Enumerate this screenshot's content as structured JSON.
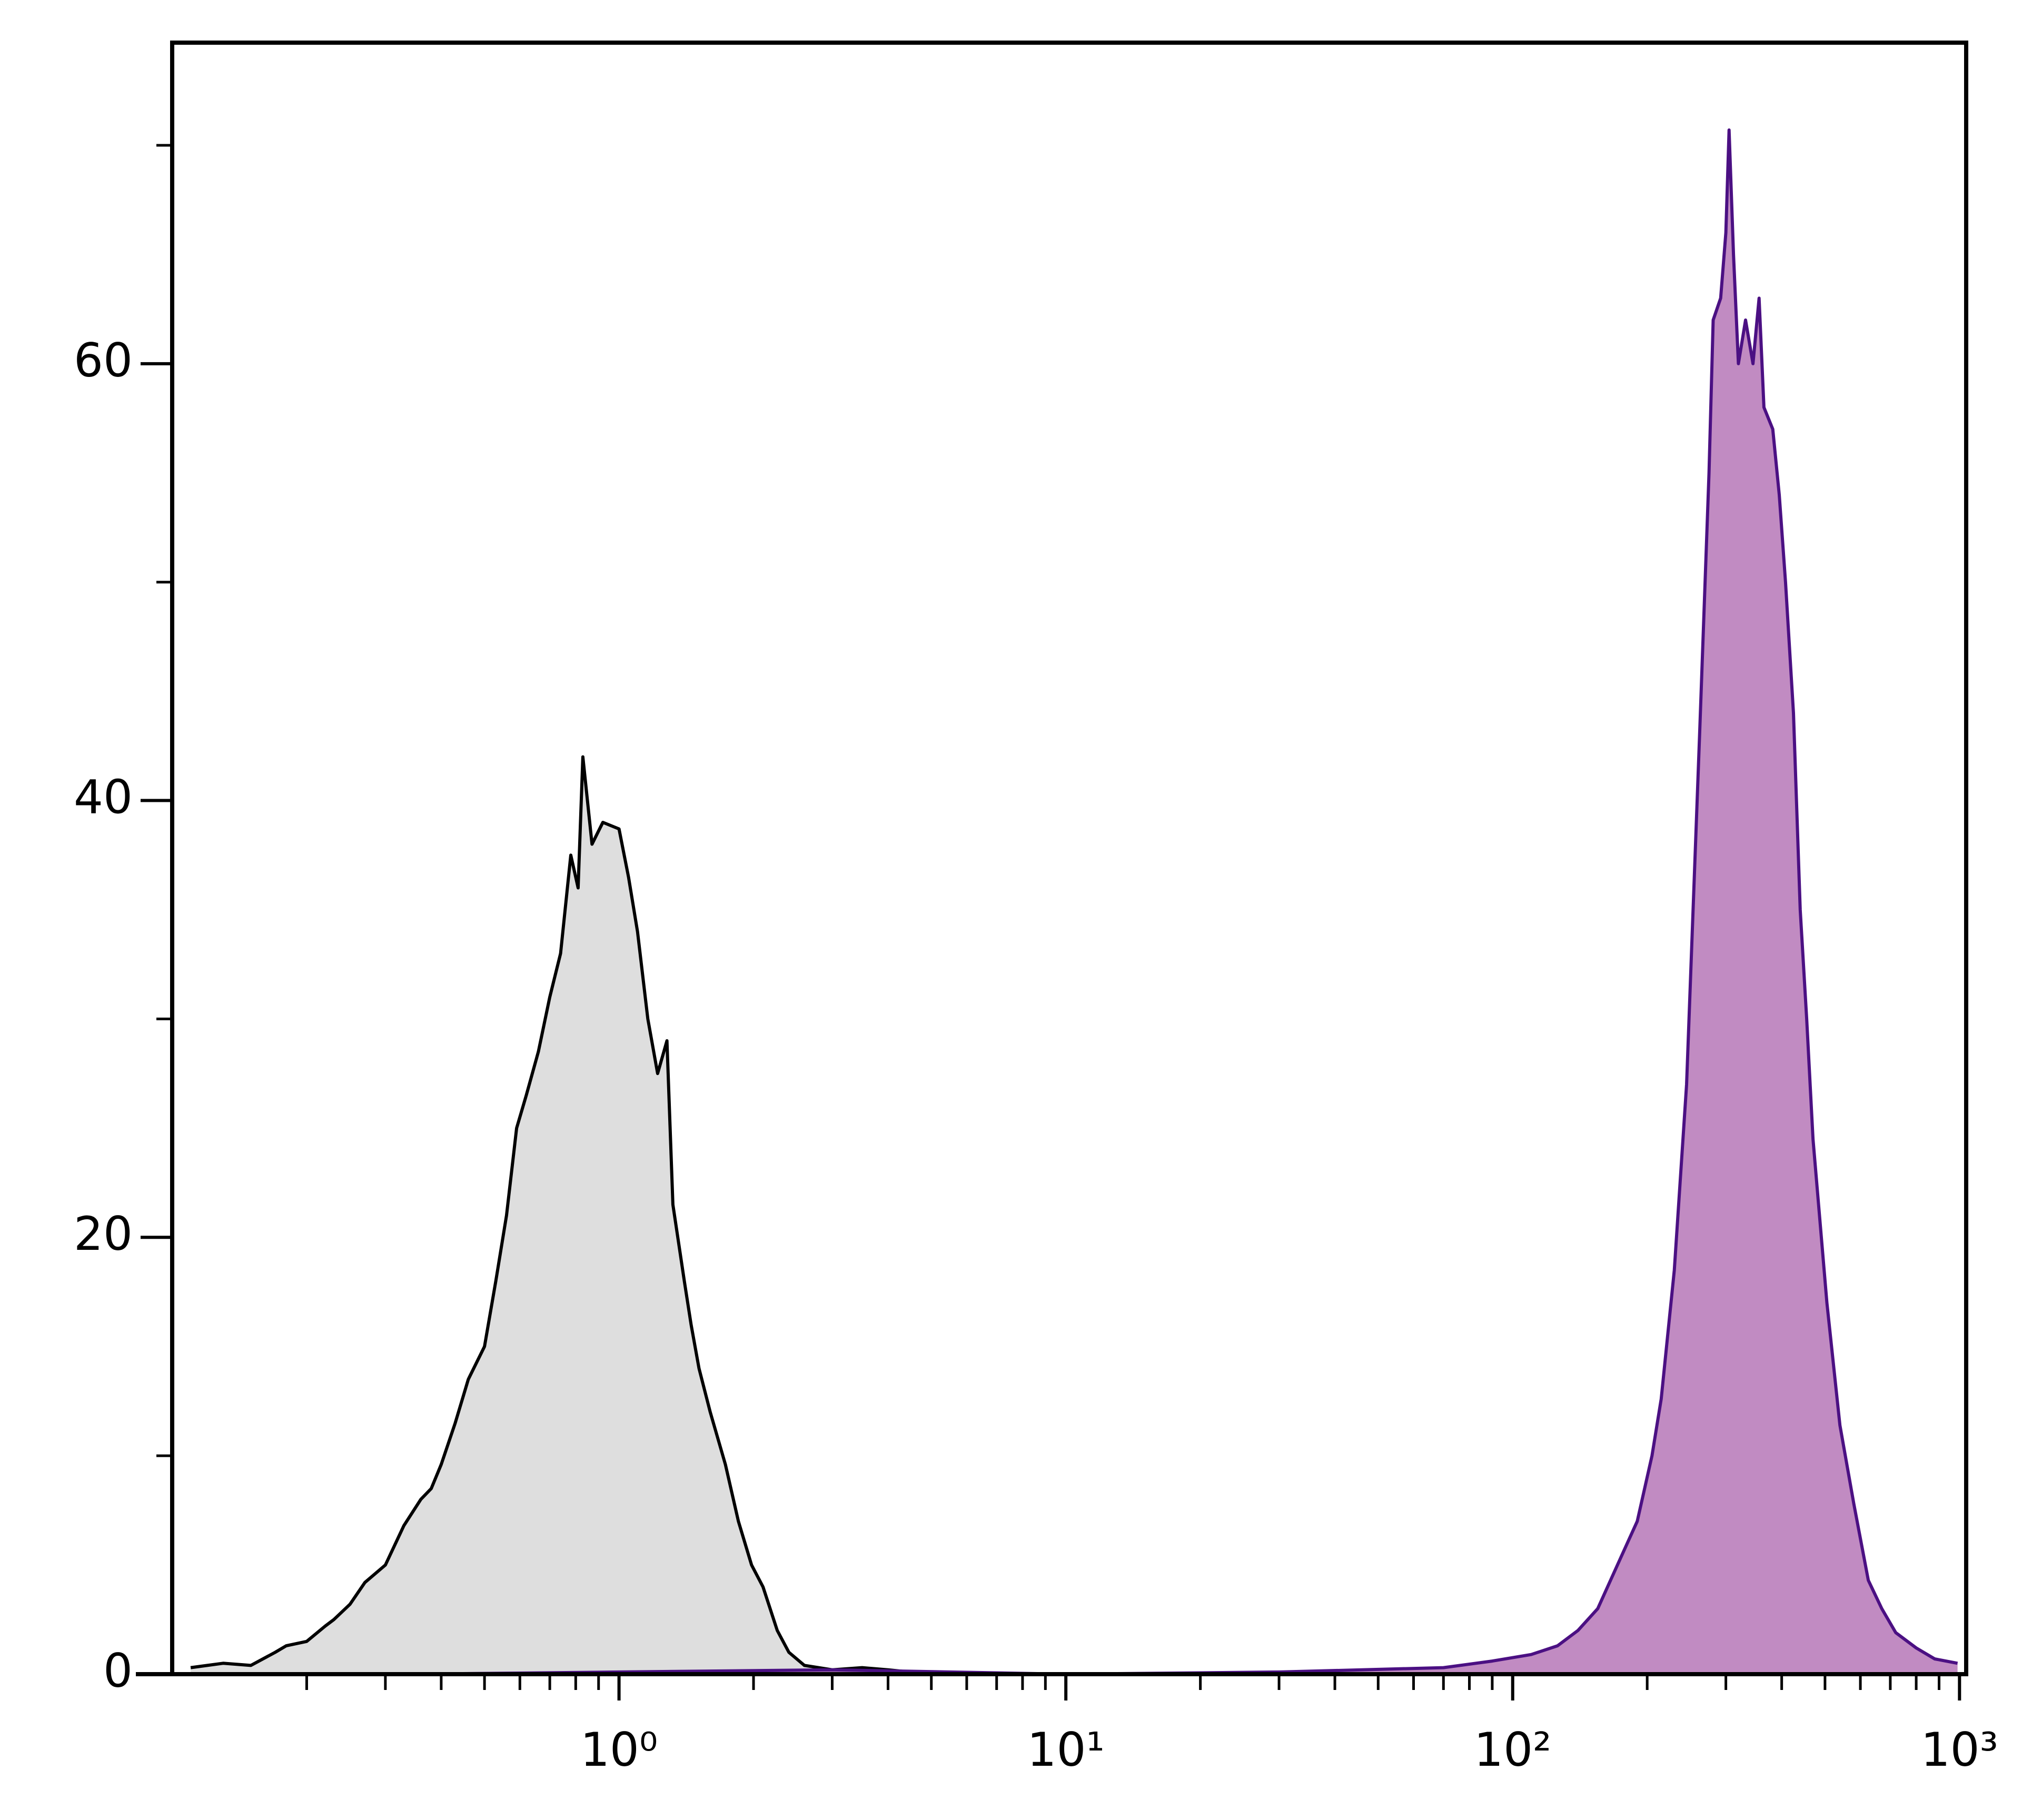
{
  "chart_data": {
    "type": "histogram-overlay",
    "xscale": "log",
    "xlim": [
      0.1,
      1035
    ],
    "ylim": [
      0,
      74.7
    ],
    "xticks": [
      {
        "value": 1,
        "label": "10⁰"
      },
      {
        "value": 10,
        "label": "10¹"
      },
      {
        "value": 100,
        "label": "10²"
      },
      {
        "value": 1000,
        "label": "10³"
      }
    ],
    "xminor_ticks": [
      0.2,
      0.3,
      0.4,
      0.5,
      0.6,
      0.7,
      0.8,
      0.9,
      2,
      3,
      4,
      5,
      6,
      7,
      8,
      9,
      20,
      30,
      40,
      50,
      60,
      70,
      80,
      90,
      200,
      300,
      400,
      500,
      600,
      700,
      800,
      900
    ],
    "yticks": [
      0,
      20,
      40,
      60
    ],
    "yminor_ticks": [
      10,
      30,
      50,
      70
    ],
    "series": [
      {
        "color": "#000000",
        "fill": "#dedede",
        "x": [
          0.11,
          0.13,
          0.15,
          0.17,
          0.18,
          0.2,
          0.22,
          0.23,
          0.25,
          0.27,
          0.3,
          0.33,
          0.36,
          0.38,
          0.4,
          0.43,
          0.46,
          0.5,
          0.53,
          0.56,
          0.59,
          0.62,
          0.66,
          0.7,
          0.74,
          0.78,
          0.81,
          0.83,
          0.87,
          0.92,
          1.0,
          1.05,
          1.1,
          1.16,
          1.22,
          1.28,
          1.32,
          1.4,
          1.45,
          1.51,
          1.6,
          1.73,
          1.85,
          1.98,
          2.1,
          2.26,
          2.4,
          2.6,
          3.0,
          3.5,
          4.0,
          5.0
        ],
        "values": [
          0.3,
          0.5,
          0.4,
          1.0,
          1.3,
          1.5,
          2.2,
          2.5,
          3.2,
          4.2,
          5.0,
          6.8,
          8.0,
          8.5,
          9.6,
          11.5,
          13.5,
          15.0,
          18.0,
          21.0,
          25.0,
          26.5,
          28.5,
          31.0,
          33.0,
          37.5,
          36.0,
          42.0,
          38.0,
          39.0,
          38.7,
          36.5,
          34.0,
          30.0,
          27.5,
          29.0,
          21.5,
          18.0,
          16.0,
          14.0,
          12.0,
          9.6,
          7.0,
          5.0,
          4.0,
          2.0,
          1.0,
          0.4,
          0.2,
          0.3,
          0.2,
          0.0
        ]
      },
      {
        "color": "#4b1083",
        "fill": "#c18bc2",
        "x": [
          0.35,
          1.0,
          3.0,
          10.0,
          30.0,
          70.0,
          90.0,
          110.0,
          126.0,
          140.0,
          155.0,
          176.0,
          190.0,
          205.0,
          215.0,
          230.0,
          245.0,
          262.0,
          275.0,
          281.0,
          292.0,
          300.0,
          305.0,
          312.0,
          320.0,
          332.0,
          345.0,
          356.0,
          365.0,
          382.0,
          395.0,
          408.0,
          425.0,
          440.0,
          455.0,
          470.0,
          505.0,
          540.0,
          580.0,
          625.0,
          670.0,
          720.0,
          800.0,
          880.0,
          990.0
        ],
        "values": [
          0.0,
          0.1,
          0.2,
          0.0,
          0.1,
          0.3,
          0.6,
          0.9,
          1.3,
          2.0,
          3.0,
          5.5,
          7.0,
          10.0,
          12.6,
          18.5,
          27.0,
          43.0,
          55.0,
          62.0,
          63.0,
          66.0,
          70.7,
          65.0,
          60.0,
          62.0,
          60.0,
          63.0,
          58.0,
          57.0,
          54.0,
          50.0,
          44.0,
          35.0,
          30.0,
          24.5,
          17.0,
          11.4,
          7.8,
          4.3,
          3.0,
          1.9,
          1.2,
          0.7,
          0.5
        ]
      }
    ]
  }
}
